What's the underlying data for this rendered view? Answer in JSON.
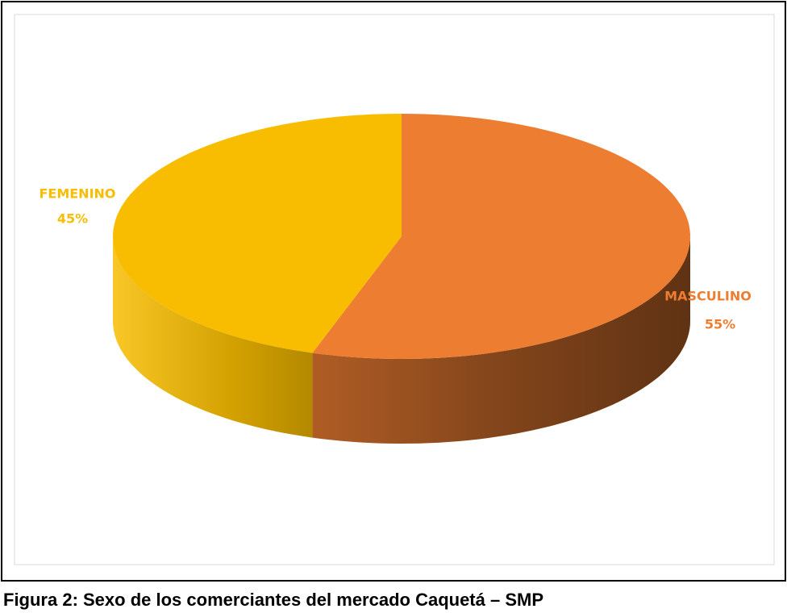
{
  "chart_data": {
    "type": "pie",
    "caption": "Figura 2: Sexo de los comerciantes del mercado Caquetá – SMP",
    "categories": [
      "MASCULINO",
      "FEMENINO"
    ],
    "values": [
      55,
      45
    ],
    "value_labels": [
      "55%",
      "45%"
    ],
    "colors": [
      "#ED7D31",
      "#F8BD00"
    ]
  }
}
